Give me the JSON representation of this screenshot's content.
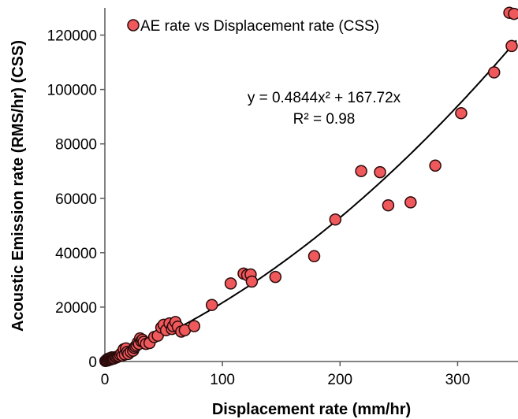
{
  "chart_data": {
    "type": "scatter",
    "title": "",
    "xlabel": "Displacement rate (mm/hr)",
    "ylabel": "Acoustic Emission rate (RMS/hr) (CSS)",
    "xlim": [
      0,
      350
    ],
    "ylim": [
      0,
      130000
    ],
    "x_ticks": [
      0,
      100,
      200,
      300
    ],
    "y_ticks": [
      0,
      20000,
      40000,
      60000,
      80000,
      100000,
      120000
    ],
    "x_tick_labels": [
      "0",
      "100",
      "200",
      "300"
    ],
    "y_tick_labels": [
      "0",
      "20000",
      "40000",
      "60000",
      "80000",
      "100000",
      "120000"
    ],
    "grid": false,
    "legend_position": "top-left",
    "colors": {
      "marker_fill": "#f0595c",
      "marker_stroke": "#2a0b0b",
      "trendline": "#000000"
    },
    "series": [
      {
        "name": "AE rate vs Displacement rate (CSS)",
        "points": [
          [
            0.5,
            200
          ],
          [
            1,
            300
          ],
          [
            1.5,
            500
          ],
          [
            2,
            800
          ],
          [
            2.5,
            400
          ],
          [
            3,
            1000
          ],
          [
            3.5,
            600
          ],
          [
            4,
            1200
          ],
          [
            4.5,
            700
          ],
          [
            5,
            900
          ],
          [
            5.5,
            1300
          ],
          [
            6,
            1500
          ],
          [
            6.5,
            1100
          ],
          [
            7,
            1000
          ],
          [
            7.5,
            1400
          ],
          [
            8,
            1200
          ],
          [
            9,
            1600
          ],
          [
            10,
            1500
          ],
          [
            11,
            1800
          ],
          [
            12,
            2000
          ],
          [
            13,
            2500
          ],
          [
            14,
            3000
          ],
          [
            15,
            2200
          ],
          [
            16,
            4500
          ],
          [
            17,
            2600
          ],
          [
            18,
            4800
          ],
          [
            19,
            3500
          ],
          [
            20,
            2800
          ],
          [
            22,
            3600
          ],
          [
            24,
            4000
          ],
          [
            25,
            5000
          ],
          [
            26,
            5500
          ],
          [
            27,
            6000
          ],
          [
            28,
            7000
          ],
          [
            29,
            6500
          ],
          [
            30,
            8500
          ],
          [
            31,
            7500
          ],
          [
            32,
            8000
          ],
          [
            33,
            7200
          ],
          [
            35,
            6500
          ],
          [
            38,
            6800
          ],
          [
            42,
            9000
          ],
          [
            45,
            9500
          ],
          [
            48,
            12500
          ],
          [
            50,
            13500
          ],
          [
            52,
            11500
          ],
          [
            55,
            14000
          ],
          [
            57,
            12000
          ],
          [
            58,
            13000
          ],
          [
            60,
            14500
          ],
          [
            62,
            12800
          ],
          [
            65,
            11000
          ],
          [
            68,
            11500
          ],
          [
            76,
            13000
          ],
          [
            91,
            20800
          ],
          [
            107,
            28700
          ],
          [
            118,
            32300
          ],
          [
            121,
            31800
          ],
          [
            124,
            32000
          ],
          [
            125,
            29400
          ],
          [
            145,
            31100
          ],
          [
            178,
            38700
          ],
          [
            196,
            52200
          ],
          [
            218,
            70000
          ],
          [
            234,
            69600
          ],
          [
            241,
            57400
          ],
          [
            260,
            58500
          ],
          [
            281,
            72000
          ],
          [
            303,
            91300
          ],
          [
            331,
            106300
          ],
          [
            344,
            128200
          ],
          [
            346,
            116000
          ],
          [
            348,
            127800
          ]
        ]
      }
    ],
    "trendline": {
      "type": "polynomial",
      "coefficients": {
        "a": 0.4844,
        "b": 167.72,
        "c": 0
      },
      "equation_label": "y = 0.4844x² + 167.72x",
      "r2_label": "R² = 0.98"
    }
  }
}
